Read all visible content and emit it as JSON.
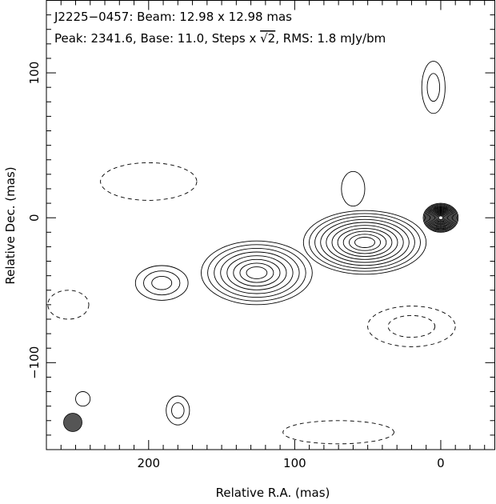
{
  "figure": {
    "header_line1": "J2225−0457: Beam: 12.98 x 12.98 mas",
    "header_line2_prefix": "Peak: 2341.6, Base: 11.0, Steps x ",
    "header_line2_sqrt": "√2",
    "header_line2_suffix": ", RMS: 1.8 mJy/bm",
    "x_label": "Relative R.A. (mas)",
    "y_label": "Relative Dec. (mas)",
    "beam_color": "#555555"
  },
  "chart_data": {
    "type": "contour",
    "source": "J2225−0457",
    "beam_mas": [
      12.98,
      12.98
    ],
    "peak": 2341.6,
    "base": 11.0,
    "step_factor": "√2",
    "rms": "1.8 mJy/bm",
    "xlim": [
      270,
      -37
    ],
    "ylim": [
      -160,
      150
    ],
    "x_ticks": [
      200,
      100,
      0
    ],
    "y_ticks": [
      100,
      0,
      -100
    ],
    "x_tick_labels": [
      "200",
      "100",
      "0"
    ],
    "y_tick_labels": [
      "100",
      "0",
      "−100"
    ],
    "components": [
      {
        "name": "core",
        "x": 0,
        "y": 0,
        "sx": 12,
        "sy": 10,
        "levels": 17,
        "positive": true
      },
      {
        "name": "inner-knot",
        "x": 52,
        "y": -17,
        "sx": 42,
        "sy": 22,
        "levels": 10,
        "positive": true
      },
      {
        "name": "mid-knot",
        "x": 126,
        "y": -38,
        "sx": 38,
        "sy": 22,
        "levels": 8,
        "positive": true
      },
      {
        "name": "outer-knot",
        "x": 191,
        "y": -45,
        "sx": 18,
        "sy": 12,
        "levels": 3,
        "positive": true
      },
      {
        "name": "north-blob",
        "x": 60,
        "y": 20,
        "sx": 8,
        "sy": 12,
        "levels": 1,
        "positive": true
      },
      {
        "name": "ne-negative",
        "x": 200,
        "y": 25,
        "sx": 33,
        "sy": 13,
        "levels": 1,
        "positive": false
      },
      {
        "name": "east-negative",
        "x": 255,
        "y": -60,
        "sx": 14,
        "sy": 10,
        "levels": 1,
        "positive": false
      },
      {
        "name": "sw-negative",
        "x": 20,
        "y": -75,
        "sx": 30,
        "sy": 14,
        "levels": 2,
        "positive": false
      },
      {
        "name": "south-negative",
        "x": 70,
        "y": -148,
        "sx": 38,
        "sy": 8,
        "levels": 1,
        "positive": false
      },
      {
        "name": "west-blob",
        "x": 5,
        "y": 90,
        "sx": 8,
        "sy": 18,
        "levels": 2,
        "positive": true
      },
      {
        "name": "south-blob",
        "x": 180,
        "y": -133,
        "sx": 8,
        "sy": 10,
        "levels": 2,
        "positive": true
      },
      {
        "name": "beam-blob",
        "x": 245,
        "y": -125,
        "sx": 5,
        "sy": 5,
        "levels": 1,
        "positive": true
      }
    ]
  }
}
